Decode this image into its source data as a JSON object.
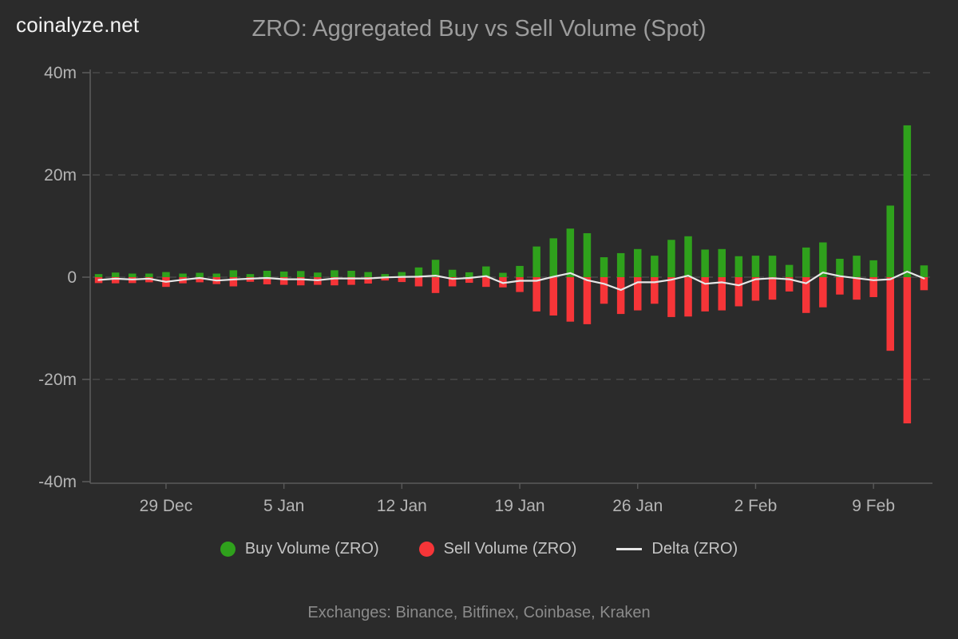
{
  "logo": "coinalyze.net",
  "title": "ZRO: Aggregated Buy vs Sell Volume (Spot)",
  "footer": "Exchanges: Binance, Bitfinex, Coinbase, Kraken",
  "colors": {
    "background": "#2b2b2b",
    "buy": "#2fa11c",
    "sell": "#f63538",
    "delta": "#e6e6e6",
    "grid": "#494949",
    "axis": "#5a5a5a",
    "axis_text": "#b4b4b4",
    "title_text": "#9c9c9c",
    "legend_text": "#c4c4c4",
    "footer_text": "#8a8a8a",
    "logo_text": "#f2f2f2"
  },
  "legend": {
    "items": [
      {
        "label": "Buy Volume (ZRO)",
        "marker": "circle",
        "color": "#2fa11c"
      },
      {
        "label": "Sell Volume (ZRO)",
        "marker": "circle",
        "color": "#f63538"
      },
      {
        "label": "Delta (ZRO)",
        "marker": "line",
        "color": "#e6e6e6"
      }
    ]
  },
  "chart_data": {
    "type": "bar",
    "title": "ZRO: Aggregated Buy vs Sell Volume (Spot)",
    "unit": "millions",
    "ylim": [
      -40,
      40
    ],
    "grid": true,
    "legend_position": "bottom",
    "y_ticks": [
      {
        "value": 40,
        "label": "40m"
      },
      {
        "value": 20,
        "label": "20m"
      },
      {
        "value": 0,
        "label": "0"
      },
      {
        "value": -20,
        "label": "-20m"
      },
      {
        "value": -40,
        "label": "-40m"
      }
    ],
    "x": [
      "25 Dec",
      "26 Dec",
      "27 Dec",
      "28 Dec",
      "29 Dec",
      "30 Dec",
      "31 Dec",
      "1 Jan",
      "2 Jan",
      "3 Jan",
      "4 Jan",
      "5 Jan",
      "6 Jan",
      "7 Jan",
      "8 Jan",
      "9 Jan",
      "10 Jan",
      "11 Jan",
      "12 Jan",
      "13 Jan",
      "14 Jan",
      "15 Jan",
      "16 Jan",
      "17 Jan",
      "18 Jan",
      "19 Jan",
      "20 Jan",
      "21 Jan",
      "22 Jan",
      "23 Jan",
      "24 Jan",
      "25 Jan",
      "26 Jan",
      "27 Jan",
      "28 Jan",
      "29 Jan",
      "30 Jan",
      "31 Jan",
      "1 Feb",
      "2 Feb",
      "3 Feb",
      "4 Feb",
      "5 Feb",
      "6 Feb",
      "7 Feb",
      "8 Feb",
      "9 Feb",
      "10 Feb",
      "11 Feb",
      "12 Feb"
    ],
    "x_tick_indices": [
      4,
      11,
      18,
      25,
      32,
      39,
      46
    ],
    "x_tick_labels": [
      "29 Dec",
      "5 Jan",
      "12 Jan",
      "19 Jan",
      "26 Jan",
      "2 Feb",
      "9 Feb"
    ],
    "series": [
      {
        "name": "Buy Volume (ZRO)",
        "type": "bar",
        "color": "#2fa11c",
        "values": [
          0.6,
          0.9,
          0.7,
          0.7,
          1.0,
          0.7,
          0.85,
          0.7,
          1.35,
          0.6,
          1.25,
          1.1,
          1.2,
          0.9,
          1.35,
          1.25,
          1.0,
          0.6,
          1.0,
          1.9,
          3.4,
          1.45,
          0.95,
          2.1,
          0.85,
          2.2,
          6.0,
          7.6,
          9.5,
          8.6,
          3.9,
          4.7,
          5.5,
          4.2,
          7.3,
          8.0,
          5.4,
          5.5,
          4.1,
          4.2,
          4.2,
          2.4,
          5.8,
          6.8,
          3.6,
          4.2,
          3.3,
          14.0,
          29.7,
          2.3
        ]
      },
      {
        "name": "Sell Volume (ZRO)",
        "type": "bar",
        "color": "#f63538",
        "values": [
          -1.15,
          -1.2,
          -1.15,
          -1.0,
          -1.9,
          -1.2,
          -1.0,
          -1.35,
          -1.8,
          -0.9,
          -1.4,
          -1.5,
          -1.6,
          -1.5,
          -1.6,
          -1.5,
          -1.25,
          -0.65,
          -0.95,
          -1.8,
          -3.1,
          -1.8,
          -1.1,
          -1.9,
          -2.0,
          -2.9,
          -6.7,
          -7.5,
          -8.7,
          -9.2,
          -5.2,
          -7.2,
          -6.5,
          -5.2,
          -7.8,
          -7.7,
          -6.7,
          -6.5,
          -5.7,
          -4.6,
          -4.4,
          -2.8,
          -7.0,
          -5.9,
          -3.4,
          -4.4,
          -3.9,
          -14.4,
          -28.6,
          -2.55
        ]
      },
      {
        "name": "Delta (ZRO)",
        "type": "line",
        "color": "#e6e6e6",
        "values": [
          -0.55,
          -0.3,
          -0.45,
          -0.3,
          -0.9,
          -0.5,
          -0.15,
          -0.65,
          -0.45,
          -0.3,
          -0.15,
          -0.4,
          -0.4,
          -0.6,
          -0.25,
          -0.25,
          -0.25,
          -0.05,
          0.05,
          0.1,
          0.3,
          -0.35,
          -0.15,
          0.2,
          -1.15,
          -0.7,
          -0.7,
          0.1,
          0.8,
          -0.6,
          -1.3,
          -2.5,
          -1.0,
          -1.0,
          -0.5,
          0.3,
          -1.3,
          -1.0,
          -1.6,
          -0.4,
          -0.2,
          -0.4,
          -1.2,
          0.9,
          0.2,
          -0.2,
          -0.6,
          -0.4,
          1.1,
          -0.25
        ]
      }
    ]
  }
}
